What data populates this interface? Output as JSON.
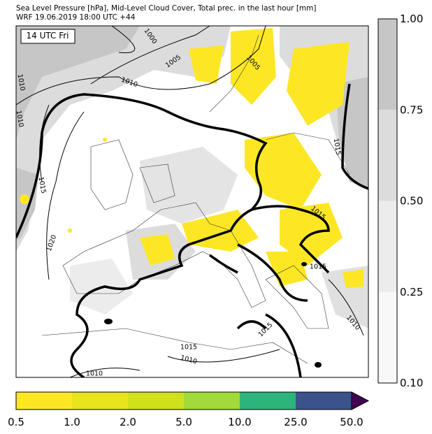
{
  "header": {
    "line1": "Sea Level Pressure [hPa], Mid-Level Cloud Cover, Total prec. in the last hour [mm]",
    "line2": "WRF 19.06.2019 18:00 UTC +44"
  },
  "map": {
    "time_label": "14 UTC Fri",
    "isobar_labels": [
      "1000",
      "1005",
      "1010",
      "1005",
      "1010",
      "1010",
      "1015",
      "1020",
      "1015",
      "1015",
      "1015",
      "1015",
      "1015",
      "1010",
      "1010",
      "1010"
    ]
  },
  "cloud_colorbar": {
    "ticks": [
      "1.00",
      "0.75",
      "0.50",
      "0.25",
      "0.10"
    ],
    "colors": [
      "#c6c6c6",
      "#dcdcdc",
      "#ececec",
      "#f8f8f8"
    ]
  },
  "precip_colorbar": {
    "ticks": [
      "0.5",
      "1.0",
      "2.0",
      "5.0",
      "10.0",
      "25.0",
      "50.0"
    ],
    "colors": [
      "#fde725",
      "#e8e41d",
      "#d0e01c",
      "#a2da39",
      "#2db47c",
      "#3b528b"
    ],
    "over_color": "#440154"
  }
}
